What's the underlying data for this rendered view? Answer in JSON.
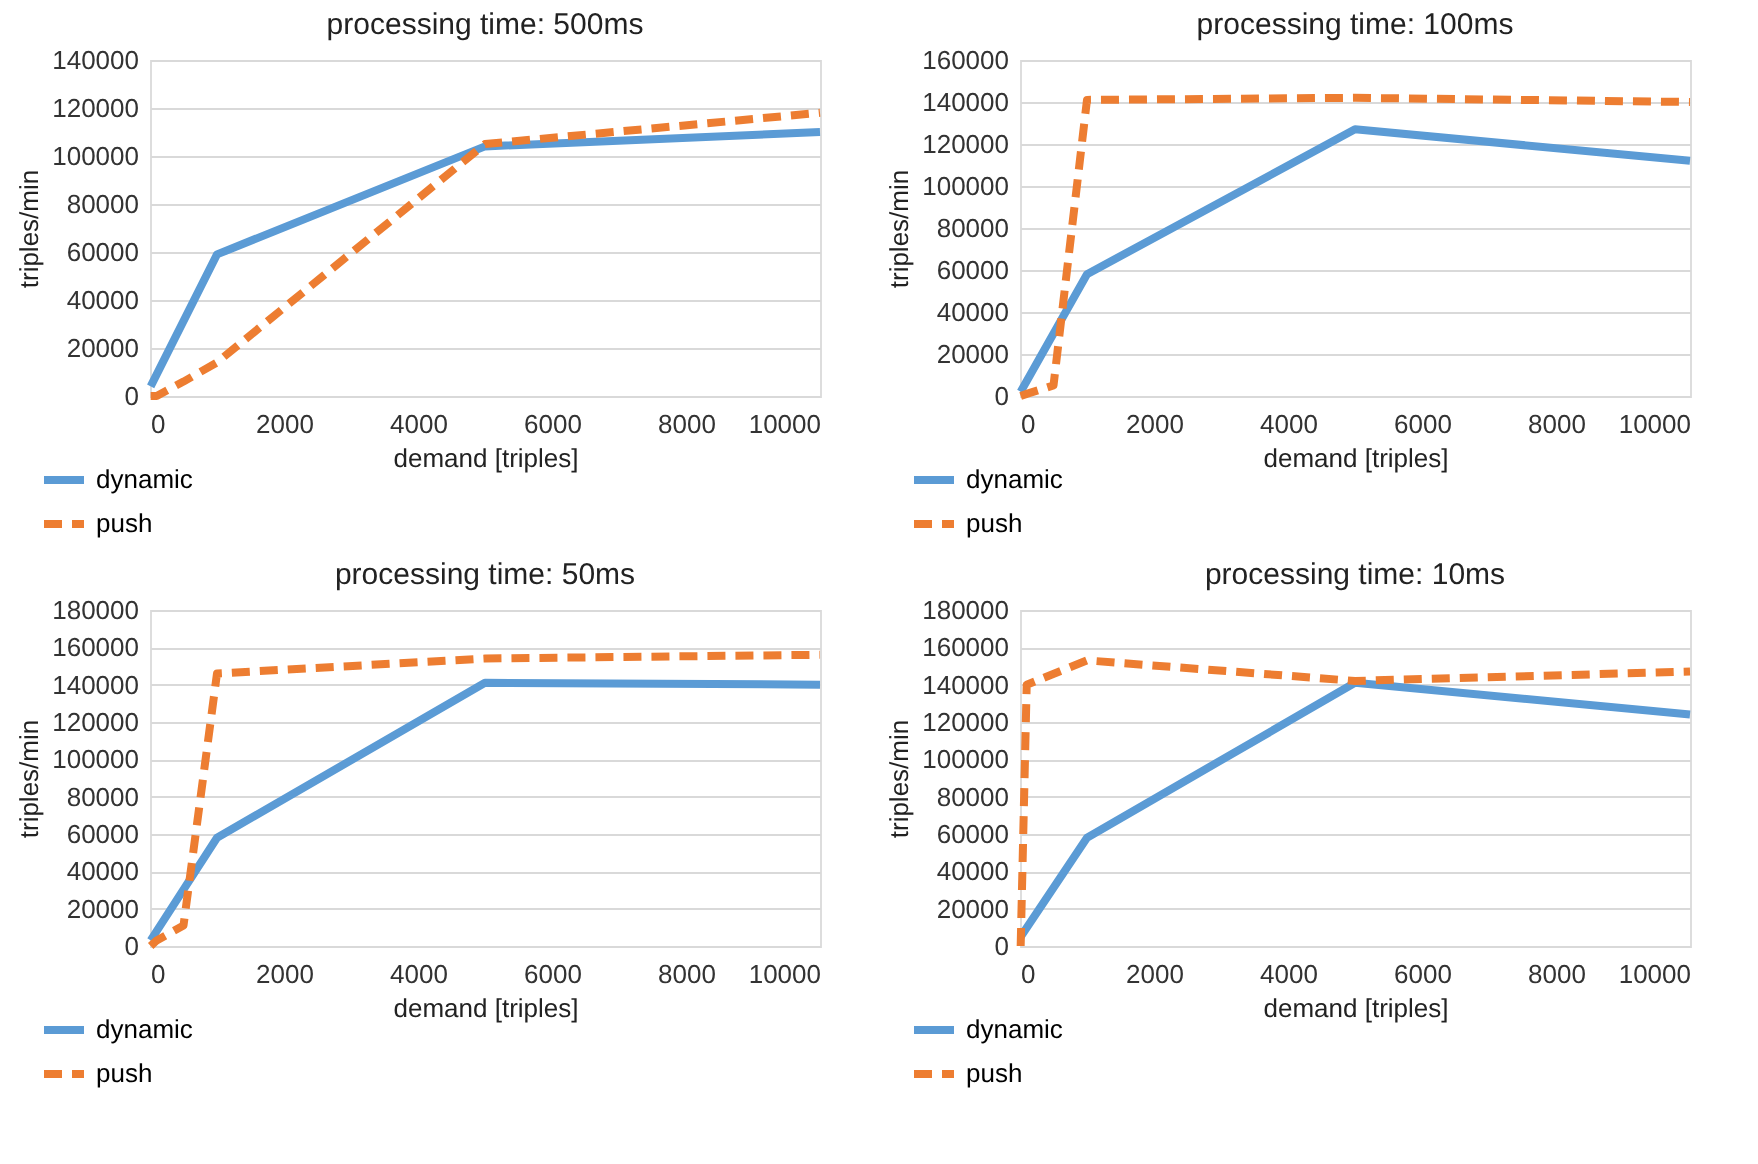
{
  "chart_data": [
    {
      "type": "line",
      "title": "processing time: 500ms",
      "xlabel": "demand [triples]",
      "ylabel": "triples/min",
      "xlim": [
        0,
        10000
      ],
      "xticks": [
        0,
        2000,
        4000,
        6000,
        8000,
        10000
      ],
      "ylim": [
        0,
        140000
      ],
      "yticks": [
        0,
        20000,
        40000,
        60000,
        80000,
        100000,
        120000,
        140000
      ],
      "grid": "y",
      "legend": "bottom left",
      "series": [
        {
          "name": "dynamic",
          "color": "#5b9bd5",
          "line_style": "solid",
          "x": [
            10,
            1000,
            5000,
            10000
          ],
          "values": [
            4000,
            59000,
            104000,
            110000
          ]
        },
        {
          "name": "push",
          "color": "#ed7d31",
          "line_style": "dashed",
          "x": [
            10,
            100,
            500,
            1000,
            5000,
            10000
          ],
          "values": [
            0,
            0,
            6000,
            14000,
            105000,
            118000
          ]
        }
      ]
    },
    {
      "type": "line",
      "title": "processing time: 100ms",
      "xlabel": "demand [triples]",
      "ylabel": "triples/min",
      "xlim": [
        0,
        10000
      ],
      "xticks": [
        0,
        2000,
        4000,
        6000,
        8000,
        10000
      ],
      "ylim": [
        0,
        160000
      ],
      "yticks": [
        0,
        20000,
        40000,
        60000,
        80000,
        100000,
        120000,
        140000,
        160000
      ],
      "grid": "y",
      "legend": "bottom left",
      "series": [
        {
          "name": "dynamic",
          "color": "#5b9bd5",
          "line_style": "solid",
          "x": [
            10,
            1000,
            5000,
            10000
          ],
          "values": [
            2000,
            58000,
            127000,
            112000
          ]
        },
        {
          "name": "push",
          "color": "#ed7d31",
          "line_style": "dashed",
          "x": [
            10,
            100,
            500,
            1000,
            5000,
            10000
          ],
          "values": [
            0,
            1000,
            5000,
            141000,
            142000,
            140000
          ]
        }
      ]
    },
    {
      "type": "line",
      "title": "processing time: 50ms",
      "xlabel": "demand [triples]",
      "ylabel": "triples/min",
      "xlim": [
        0,
        10000
      ],
      "xticks": [
        0,
        2000,
        4000,
        6000,
        8000,
        10000
      ],
      "ylim": [
        0,
        180000
      ],
      "yticks": [
        0,
        20000,
        40000,
        60000,
        80000,
        100000,
        120000,
        140000,
        160000,
        180000
      ],
      "grid": "y",
      "legend": "bottom left",
      "series": [
        {
          "name": "dynamic",
          "color": "#5b9bd5",
          "line_style": "solid",
          "x": [
            10,
            1000,
            5000,
            10000
          ],
          "values": [
            3000,
            58000,
            141000,
            140000
          ]
        },
        {
          "name": "push",
          "color": "#ed7d31",
          "line_style": "dashed",
          "x": [
            10,
            100,
            500,
            1000,
            5000,
            10000
          ],
          "values": [
            0,
            3000,
            11000,
            146000,
            154000,
            156000
          ]
        }
      ]
    },
    {
      "type": "line",
      "title": "processing time: 10ms",
      "xlabel": "demand [triples]",
      "ylabel": "triples/min",
      "xlim": [
        0,
        10000
      ],
      "xticks": [
        0,
        2000,
        4000,
        6000,
        8000,
        10000
      ],
      "ylim": [
        0,
        180000
      ],
      "yticks": [
        0,
        20000,
        40000,
        60000,
        80000,
        100000,
        120000,
        140000,
        160000,
        180000
      ],
      "grid": "y",
      "legend": "bottom left",
      "series": [
        {
          "name": "dynamic",
          "color": "#5b9bd5",
          "line_style": "solid",
          "x": [
            10,
            1000,
            5000,
            10000
          ],
          "values": [
            5000,
            58000,
            141000,
            124000
          ]
        },
        {
          "name": "push",
          "color": "#ed7d31",
          "line_style": "dashed",
          "x": [
            10,
            100,
            1000,
            5000,
            10000
          ],
          "values": [
            0,
            140000,
            153000,
            142000,
            147000
          ]
        }
      ]
    }
  ]
}
